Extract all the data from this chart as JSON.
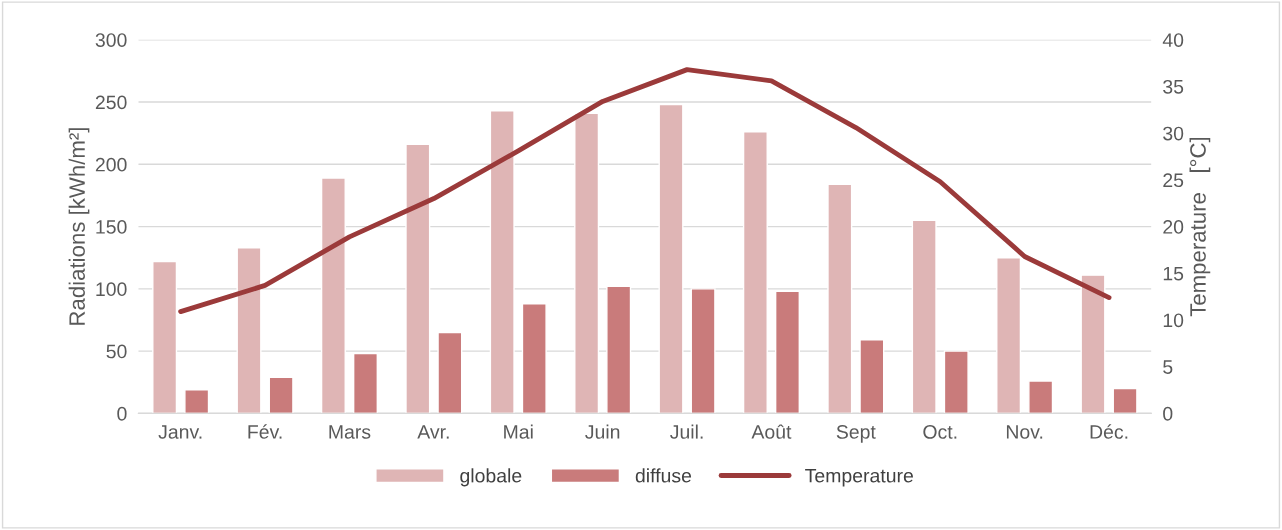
{
  "chart_data": {
    "type": "bar",
    "categories": [
      "Janv.",
      "Fév.",
      "Mars",
      "Avr.",
      "Mai",
      "Juin",
      "Juil.",
      "Août",
      "Sept",
      "Oct.",
      "Nov.",
      "Déc."
    ],
    "ylabel": "Radiations [kWh/m²]",
    "y2label": "Temperature   [°C]",
    "series": [
      {
        "name": "globale",
        "color": "#dfb5b5",
        "values": [
          122,
          133,
          189,
          216,
          243,
          241,
          248,
          226,
          184,
          155,
          125,
          111
        ]
      },
      {
        "name": "diffuse",
        "color": "#c97b7b",
        "values": [
          19,
          29,
          48,
          65,
          88,
          102,
          100,
          98,
          59,
          50,
          26,
          20
        ]
      },
      {
        "name": "Temperature",
        "type": "line",
        "axis": "y2",
        "color": "#9b3a3a",
        "values": [
          10.9,
          13.7,
          18.9,
          23.0,
          28.1,
          33.4,
          36.8,
          35.6,
          30.6,
          24.8,
          16.8,
          12.4
        ]
      }
    ],
    "ylim": [
      0,
      300
    ],
    "yticks": [
      0,
      50,
      100,
      150,
      200,
      250,
      300
    ],
    "y2lim": [
      0,
      40
    ],
    "y2ticks": [
      0,
      5,
      10,
      15,
      20,
      25,
      30,
      35,
      40
    ],
    "grid": "y",
    "legend": "bottom"
  }
}
